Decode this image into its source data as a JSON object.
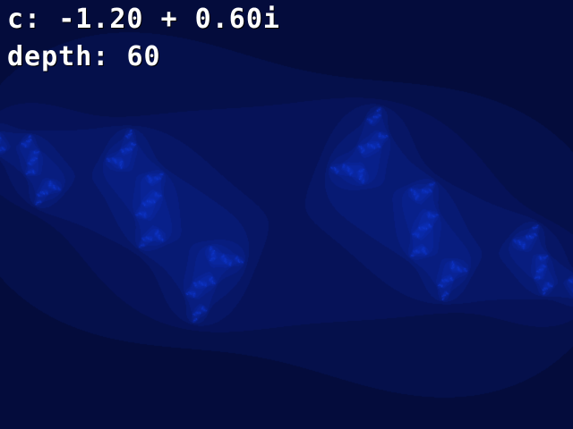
{
  "hud": {
    "c_label": "c:",
    "c_value": "-1.20 + 0.60i",
    "depth_label": "depth:",
    "depth_value": "60"
  },
  "fractal": {
    "type": "julia-set",
    "c_real": -1.2,
    "c_imag": 0.6,
    "max_iterations": 60,
    "colors": {
      "background": "#02041a",
      "outer_glow": "#06135a",
      "mid_glow": "#0a2cb4",
      "inner_glow": "#123fd8",
      "core": "#3a7cff",
      "highlight": "#9fc8ff"
    }
  }
}
